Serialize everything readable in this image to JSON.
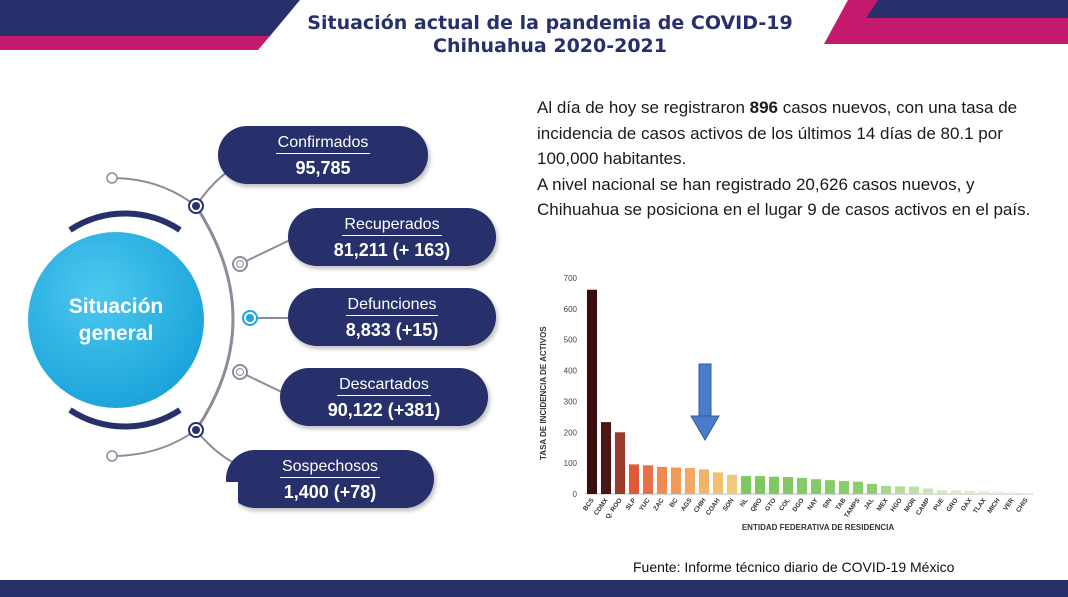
{
  "header": {
    "title_line1": "Situación actual de la pandemia de COVID-19",
    "title_line2": "Chihuahua 2020-2021",
    "colors": {
      "navy": "#27306b",
      "magenta": "#c41a6e",
      "cyan": "#1fa6dc"
    }
  },
  "center": {
    "line1": "Situación",
    "line2": "general"
  },
  "stats": [
    {
      "label": "Confirmados",
      "value": "95,785"
    },
    {
      "label": "Recuperados",
      "value": "81,211 (+ 163)"
    },
    {
      "label": "Defunciones",
      "value": "8,833 (+15)"
    },
    {
      "label": "Descartados",
      "value": "90,122 (+381)"
    },
    {
      "label": "Sospechosos",
      "value": "1,400 (+78)"
    }
  ],
  "info": {
    "p1_pre": "Al día de hoy se registraron ",
    "p1_bold": "896",
    "p1_post": " casos nuevos, con una tasa de incidencia de casos activos de los últimos 14 días de 80.1 por 100,000 habitantes.",
    "p2": "A nivel nacional se han registrado 20,626 casos nuevos, y Chihuahua se posiciona en el lugar 9 de casos activos en el país."
  },
  "chart_data": {
    "type": "bar",
    "xlabel": "ENTIDAD FEDERATIVA DE RESIDENCIA",
    "ylabel": "TASA DE INCIDENCIA DE ACTIVOS",
    "ylim": [
      0,
      700
    ],
    "yticks": [
      0,
      100,
      200,
      300,
      400,
      500,
      600,
      700
    ],
    "grid": false,
    "categories": [
      "BCS",
      "CDMX",
      "Q. ROO",
      "SLP",
      "YUC",
      "ZAC",
      "BC",
      "AGS",
      "CHIH",
      "COAH",
      "SON",
      "NL",
      "QRO",
      "GTO",
      "COL",
      "DGO",
      "NAY",
      "SIN",
      "TAB",
      "TAMPS",
      "JAL",
      "MEX",
      "HGO",
      "MOR",
      "CAMP",
      "PUE",
      "GRO",
      "OAX",
      "TLAX",
      "MICH",
      "VER",
      "CHIS"
    ],
    "values": [
      662,
      233,
      200,
      96,
      93,
      88,
      86,
      84,
      80,
      70,
      62,
      58,
      58,
      56,
      55,
      52,
      48,
      45,
      42,
      40,
      33,
      26,
      25,
      24,
      18,
      12,
      11,
      10,
      9,
      8,
      6,
      4
    ],
    "annotation": "arrow pointing to CHIH"
  },
  "source": "Fuente: Informe técnico diario de COVID-19 México"
}
